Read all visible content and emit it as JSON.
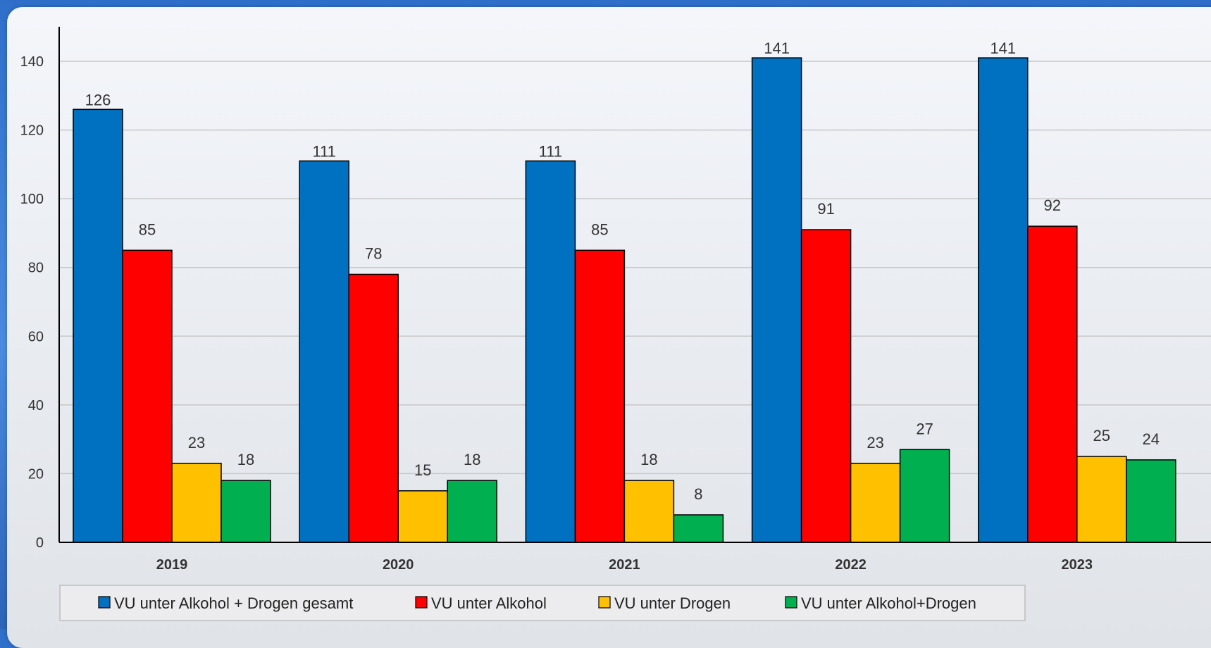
{
  "chart_data": {
    "type": "bar",
    "title": "",
    "xlabel": "",
    "ylabel": "",
    "categories": [
      "2019",
      "2020",
      "2021",
      "2022",
      "2023"
    ],
    "series": [
      {
        "name": "VU unter Alkohol + Drogen gesamt",
        "color": "#0070c0",
        "values": [
          126,
          111,
          111,
          141,
          141
        ]
      },
      {
        "name": "VU unter Alkohol",
        "color": "#ff0000",
        "values": [
          85,
          78,
          85,
          91,
          92
        ]
      },
      {
        "name": "VU unter Drogen",
        "color": "#ffc000",
        "values": [
          23,
          15,
          18,
          23,
          25
        ]
      },
      {
        "name": "VU unter Alkohol+Drogen",
        "color": "#00b050",
        "values": [
          18,
          18,
          8,
          27,
          24
        ]
      }
    ],
    "ylim": [
      0,
      140
    ],
    "yticks": [
      0,
      20,
      40,
      60,
      80,
      100,
      120,
      140
    ],
    "grid": true,
    "legend_position": "bottom"
  }
}
